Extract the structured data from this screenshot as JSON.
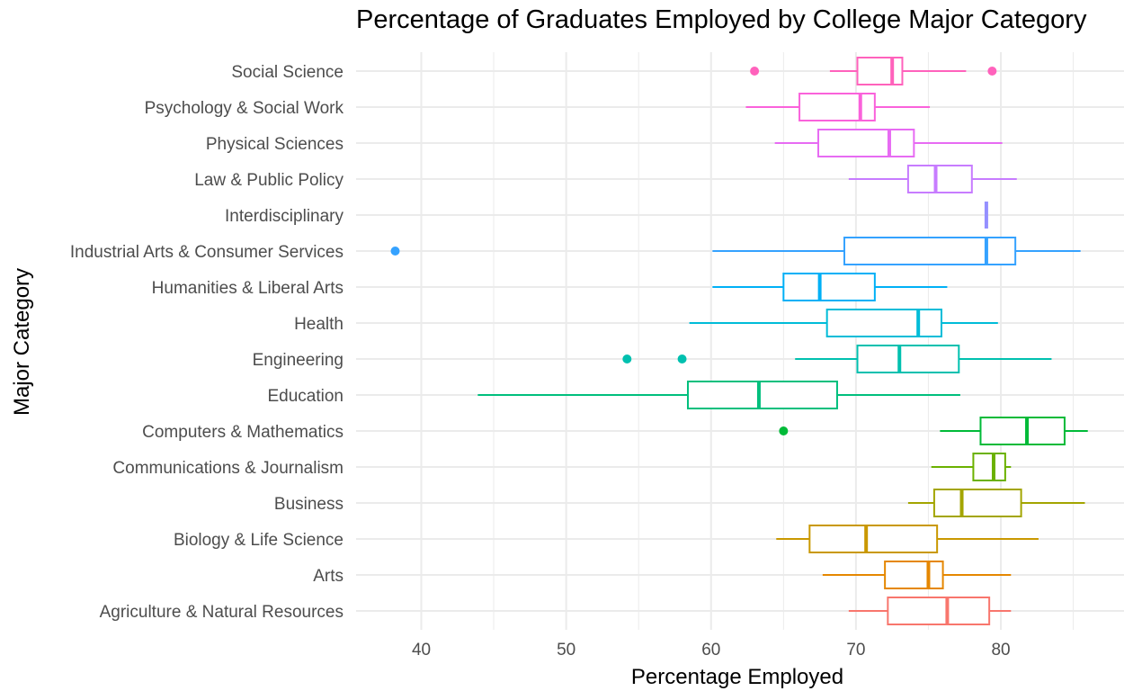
{
  "chart_data": {
    "type": "boxplot",
    "title": "Percentage of Graduates Employed by College Major Category",
    "xlabel": "Percentage Employed",
    "ylabel": "Major Category",
    "xlim": [
      35.5,
      88.5
    ],
    "xticks": [
      40,
      50,
      60,
      70,
      80
    ],
    "grid": true,
    "legend": "none",
    "categories": [
      {
        "name": "Agriculture & Natural Resources",
        "color": "#F8766D",
        "min": 69.5,
        "q1": 72.2,
        "median": 76.3,
        "q3": 79.2,
        "max": 80.7,
        "outliers": []
      },
      {
        "name": "Arts",
        "color": "#E58700",
        "min": 67.7,
        "q1": 72.0,
        "median": 75.0,
        "q3": 76.0,
        "max": 80.7,
        "outliers": []
      },
      {
        "name": "Biology & Life Science",
        "color": "#C99800",
        "min": 64.5,
        "q1": 66.8,
        "median": 70.7,
        "q3": 75.6,
        "max": 82.6,
        "outliers": []
      },
      {
        "name": "Business",
        "color": "#A3A500",
        "min": 73.6,
        "q1": 75.4,
        "median": 77.3,
        "q3": 81.4,
        "max": 85.8,
        "outliers": []
      },
      {
        "name": "Communications & Journalism",
        "color": "#6BB100",
        "min": 75.2,
        "q1": 78.1,
        "median": 79.5,
        "q3": 80.3,
        "max": 80.7,
        "outliers": []
      },
      {
        "name": "Computers & Mathematics",
        "color": "#00BA38",
        "min": 75.8,
        "q1": 78.6,
        "median": 81.8,
        "q3": 84.4,
        "max": 86.0,
        "outliers": [
          65.0
        ]
      },
      {
        "name": "Education",
        "color": "#00BF7D",
        "min": 43.9,
        "q1": 58.4,
        "median": 63.3,
        "q3": 68.7,
        "max": 77.2,
        "outliers": []
      },
      {
        "name": "Engineering",
        "color": "#00C0AF",
        "min": 65.8,
        "q1": 70.1,
        "median": 73.0,
        "q3": 77.1,
        "max": 83.5,
        "outliers": [
          54.2,
          58.0
        ]
      },
      {
        "name": "Health",
        "color": "#00BCD8",
        "min": 58.5,
        "q1": 68.0,
        "median": 74.3,
        "q3": 75.9,
        "max": 79.8,
        "outliers": []
      },
      {
        "name": "Humanities & Liberal Arts",
        "color": "#00B0F6",
        "min": 60.1,
        "q1": 65.0,
        "median": 67.5,
        "q3": 71.3,
        "max": 76.3,
        "outliers": []
      },
      {
        "name": "Industrial Arts & Consumer Services",
        "color": "#35A2FF",
        "min": 60.1,
        "q1": 69.2,
        "median": 79.0,
        "q3": 81.0,
        "max": 85.5,
        "outliers": [
          38.2
        ]
      },
      {
        "name": "Interdisciplinary",
        "color": "#9590FF",
        "min": 79.0,
        "q1": 79.0,
        "median": 79.0,
        "q3": 79.0,
        "max": 79.0,
        "outliers": []
      },
      {
        "name": "Law & Public Policy",
        "color": "#C77CFF",
        "min": 69.5,
        "q1": 73.6,
        "median": 75.5,
        "q3": 78.0,
        "max": 81.1,
        "outliers": []
      },
      {
        "name": "Physical Sciences",
        "color": "#E76BF3",
        "min": 64.4,
        "q1": 67.4,
        "median": 72.3,
        "q3": 74.0,
        "max": 80.1,
        "outliers": []
      },
      {
        "name": "Psychology & Social Work",
        "color": "#FA62DB",
        "min": 62.4,
        "q1": 66.1,
        "median": 70.3,
        "q3": 71.3,
        "max": 75.1,
        "outliers": []
      },
      {
        "name": "Social Science",
        "color": "#FF62BC",
        "min": 68.2,
        "q1": 70.1,
        "median": 72.5,
        "q3": 73.2,
        "max": 77.6,
        "outliers": [
          63.0,
          79.4
        ]
      }
    ]
  }
}
